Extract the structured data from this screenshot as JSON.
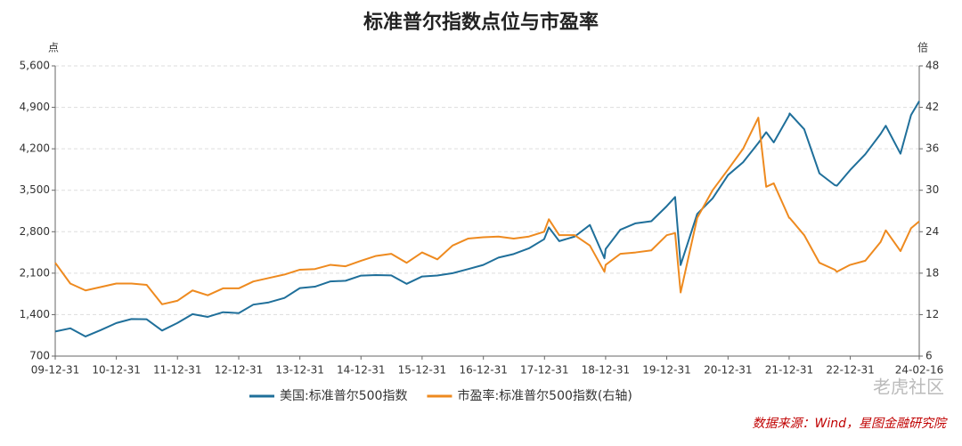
{
  "chart_data": {
    "type": "line",
    "title": "标准普尔指数点位与市盈率",
    "y_label": "点",
    "y2_label": "倍",
    "source": "数据来源：Wind，星图金融研究院",
    "watermark": "老虎社区",
    "x": [
      "09-12-31",
      "10-03-31",
      "10-06-30",
      "10-09-30",
      "10-12-31",
      "11-03-31",
      "11-06-30",
      "11-09-30",
      "11-12-30",
      "12-03-30",
      "12-06-29",
      "12-09-28",
      "12-12-31",
      "13-03-28",
      "13-06-28",
      "13-09-30",
      "13-12-31",
      "14-03-31",
      "14-06-30",
      "14-09-30",
      "14-12-31",
      "15-03-31",
      "15-06-30",
      "15-09-30",
      "15-12-31",
      "16-03-31",
      "16-06-30",
      "16-09-30",
      "16-12-30",
      "17-03-31",
      "17-06-30",
      "17-09-29",
      "17-12-29",
      "18-01-26",
      "18-03-29",
      "18-06-29",
      "18-09-28",
      "18-12-24",
      "18-12-31",
      "19-03-29",
      "19-06-28",
      "19-09-30",
      "19-12-31",
      "20-02-19",
      "20-03-23",
      "20-06-30",
      "20-09-30",
      "20-12-31",
      "21-03-31",
      "21-06-30",
      "21-08-16",
      "21-09-30",
      "21-12-31",
      "22-01-03",
      "22-03-31",
      "22-06-30",
      "22-09-30",
      "22-10-12",
      "22-12-30",
      "23-03-31",
      "23-06-30",
      "23-07-31",
      "23-10-27",
      "23-12-29",
      "24-02-16"
    ],
    "series": [
      {
        "name": "美国:标准普尔500指数",
        "color": "#1f6f9a",
        "axis": "y",
        "values": [
          1115,
          1169,
          1031,
          1141,
          1258,
          1326,
          1321,
          1131,
          1258,
          1408,
          1362,
          1441,
          1426,
          1569,
          1606,
          1682,
          1848,
          1872,
          1960,
          1972,
          2059,
          2068,
          2063,
          1920,
          2044,
          2060,
          2099,
          2168,
          2239,
          2363,
          2423,
          2519,
          2674,
          2873,
          2641,
          2718,
          2914,
          2351,
          2507,
          2834,
          2942,
          2977,
          3231,
          3386,
          2237,
          3100,
          3363,
          3756,
          3973,
          4298,
          4480,
          4308,
          4766,
          4797,
          4530,
          3785,
          3586,
          3577,
          3840,
          4109,
          4450,
          4589,
          4117,
          4770,
          5005
        ]
      },
      {
        "name": "市盈率:标准普尔500指数(右轴)",
        "color": "#ee8a1f",
        "axis": "y2",
        "values": [
          19.5,
          16.5,
          15.5,
          16,
          16.5,
          16.5,
          16.3,
          13.5,
          14,
          15.5,
          14.8,
          15.8,
          15.8,
          16.8,
          17.3,
          17.8,
          18.5,
          18.6,
          19.2,
          19,
          19.8,
          20.5,
          20.8,
          19.5,
          21,
          20,
          22,
          23,
          23.2,
          23.3,
          23,
          23.3,
          24,
          25.8,
          23.5,
          23.5,
          22,
          18.2,
          19.2,
          20.8,
          21,
          21.3,
          23.5,
          23.8,
          15.2,
          26,
          30,
          33,
          36,
          40.5,
          30.5,
          31,
          26,
          26,
          23.5,
          19.5,
          18.5,
          18.2,
          19.2,
          19.8,
          22.5,
          24.2,
          21.2,
          24.5,
          25.5
        ]
      }
    ],
    "xlim": [
      "09-12-31",
      "24-02-16"
    ],
    "xticks": [
      "09-12-31",
      "10-12-31",
      "11-12-31",
      "12-12-31",
      "13-12-31",
      "14-12-31",
      "15-12-31",
      "16-12-31",
      "17-12-31",
      "18-12-31",
      "19-12-31",
      "20-12-31",
      "21-12-31",
      "22-12-31",
      "24-02-16"
    ],
    "ylim": [
      700,
      5600
    ],
    "yticks": [
      700,
      {
        "value": 1400,
        "label": "1,400"
      },
      {
        "value": 2100,
        "label": "2,100"
      },
      {
        "value": 2800,
        "label": "2,800"
      },
      {
        "value": 3500,
        "label": "3,500"
      },
      {
        "value": 4200,
        "label": "4,200"
      },
      {
        "value": 4900,
        "label": "4,900"
      },
      {
        "value": 5600,
        "label": "5,600"
      }
    ],
    "y2lim": [
      6,
      48
    ],
    "y2ticks": [
      6,
      12,
      18,
      24,
      30,
      36,
      42,
      48
    ],
    "grid": true
  }
}
